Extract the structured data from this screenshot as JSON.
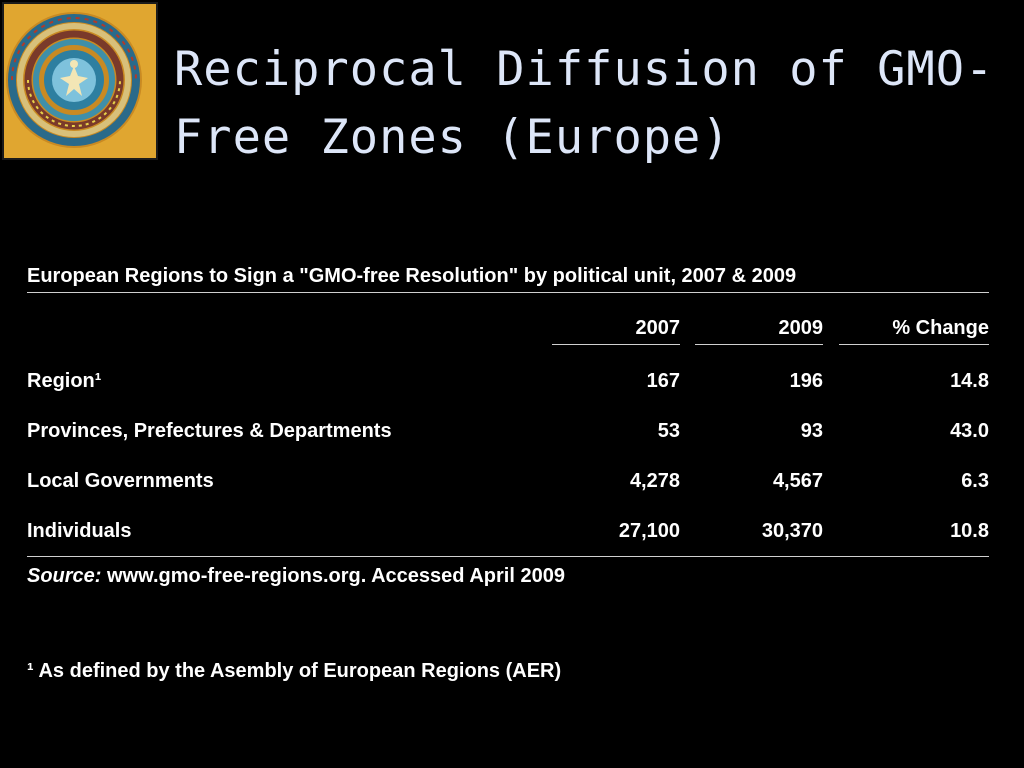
{
  "slide": {
    "title": "Reciprocal Diffusion of GMO-\nFree Zones (Europe)",
    "logo_icon": "spiral-mandala-icon",
    "colors": {
      "background": "#000000",
      "title": "#dde6f8",
      "text": "#ffffff",
      "logo_bg": "#e0a630"
    }
  },
  "table": {
    "caption": "European Regions to Sign a \"GMO-free Resolution\" by political unit, 2007 & 2009",
    "headers": [
      "",
      "2007",
      "2009",
      "% Change"
    ],
    "rows": [
      {
        "label": "Region¹",
        "v2007": "167",
        "v2009": "196",
        "change": "14.8"
      },
      {
        "label": "Provinces, Prefectures & Departments",
        "v2007": "53",
        "v2009": "93",
        "change": "43.0"
      },
      {
        "label": "Local Governments",
        "v2007": "4,278",
        "v2009": "4,567",
        "change": "6.3"
      },
      {
        "label": "Individuals",
        "v2007": "27,100",
        "v2009": "30,370",
        "change": "10.8"
      }
    ]
  },
  "source": {
    "label": "Source:",
    "text": " www.gmo-free-regions.org. Accessed April 2009"
  },
  "footnote": "¹ As defined by the Asembly of European Regions (AER)"
}
